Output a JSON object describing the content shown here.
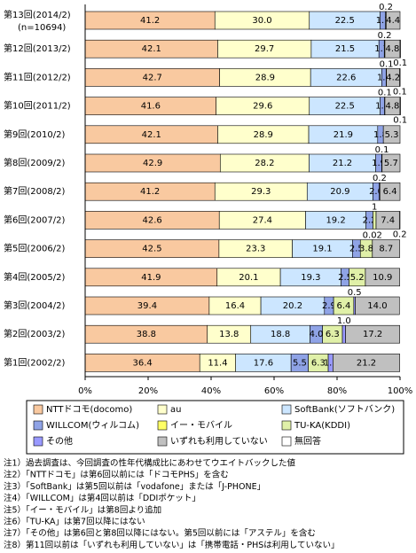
{
  "chart_data": {
    "type": "stacked-bar-horizontal",
    "categories": [
      "第13回(2014/2)",
      "第12回(2013/2)",
      "第11回(2012/2)",
      "第10回(2011/2)",
      "第9回(2010/2)",
      "第8回(2009/2)",
      "第7回(2008/2)",
      "第6回(2007/2)",
      "第5回(2006/2)",
      "第4回(2005/2)",
      "第3回(2004/2)",
      "第2回(2003/2)",
      "第1回(2002/2)"
    ],
    "sample_note": "(n=10694)",
    "series": [
      {
        "name": "NTTドコモ(docomo)",
        "color": "#f9c9a0",
        "values": [
          41.2,
          42.1,
          42.7,
          41.6,
          42.1,
          42.9,
          41.2,
          42.6,
          42.5,
          41.9,
          39.4,
          38.8,
          36.4
        ]
      },
      {
        "name": "au",
        "color": "#ffffcc",
        "values": [
          30.0,
          29.7,
          28.9,
          29.6,
          28.9,
          28.2,
          29.3,
          27.4,
          23.3,
          20.1,
          16.4,
          13.8,
          11.4
        ],
        "value_labels": [
          "30.0",
          "29.7",
          "28.9",
          "29.6",
          "28.9",
          "28.2",
          "29.3",
          "27.4",
          "23.3",
          "20.1",
          "16.4",
          "13.8",
          "11.4"
        ]
      },
      {
        "name": "SoftBank(ソフトバンク)",
        "color": "#cce6ff",
        "values": [
          22.5,
          21.5,
          22.6,
          22.5,
          21.9,
          21.2,
          20.9,
          19.2,
          19.1,
          19.3,
          20.2,
          18.8,
          17.6
        ]
      },
      {
        "name": "WILLCOM(ウィルコム)",
        "color": "#8fa3e6",
        "values": [
          1.7,
          1.7,
          1.4,
          1.4,
          1.8,
          1.9,
          2.0,
          2.2,
          2.5,
          2.5,
          2.9,
          4.0,
          5.5
        ],
        "value_labels": [
          "1.7",
          "1.7",
          "1.4",
          "1.4",
          "1.8",
          "1.9",
          "2.0",
          "2.2",
          "2.5",
          "2.5",
          "2.9",
          "4.0",
          "5.5"
        ]
      },
      {
        "name": "イー・モバイル",
        "color": "#ffff66",
        "values": [
          0.2,
          0.2,
          0.1,
          0.1,
          null,
          0.1,
          null,
          null,
          null,
          null,
          null,
          null,
          null
        ]
      },
      {
        "name": "TU-KA(KDDI)",
        "color": "#e0f0a8",
        "values": [
          null,
          null,
          null,
          null,
          null,
          null,
          null,
          1,
          3.8,
          5.2,
          6.4,
          6.3,
          6.3
        ]
      },
      {
        "name": "その他",
        "color": "#9999ff",
        "values": [
          null,
          null,
          null,
          null,
          null,
          null,
          0.2,
          null,
          0.02,
          null,
          0.5,
          1.0,
          1.5
        ],
        "value_labels": [
          null,
          null,
          null,
          null,
          null,
          null,
          "0.2",
          null,
          "0.02",
          null,
          "0.5",
          "1.0",
          "1.5"
        ]
      },
      {
        "name": "いずれも利用していない",
        "color": "#c0c0c0",
        "values": [
          4.4,
          4.8,
          4.2,
          4.8,
          5.3,
          5.7,
          6.4,
          7.4,
          8.7,
          10.9,
          14.0,
          17.2,
          21.2
        ],
        "value_labels": [
          "4.4",
          "4.8",
          "4.2",
          "4.8",
          "5.3",
          "5.7",
          "6.4",
          "7.4",
          "8.7",
          "10.9",
          "14.0",
          "17.2",
          "21.2"
        ]
      },
      {
        "name": "無回答",
        "color": "#ffffff",
        "values": [
          null,
          0.1,
          0.1,
          0.1,
          null,
          null,
          null,
          0.2,
          null,
          null,
          null,
          null,
          null
        ]
      }
    ],
    "xlim": [
      0,
      100
    ],
    "xticks": [
      {
        "value": 0,
        "label": "0%"
      },
      {
        "value": 20,
        "label": "20%"
      },
      {
        "value": 40,
        "label": "40%"
      },
      {
        "value": 60,
        "label": "60%"
      },
      {
        "value": 80,
        "label": "80%"
      },
      {
        "value": 100,
        "label": "100%"
      }
    ]
  },
  "notes": [
    "注1）過去調査は、今回調査の性年代構成比にあわせてウエイトバックした値",
    "注2）「NTTドコモ」は第6回以前には「ドコモPHS」を含む",
    "注3）「SoftBank」は第5回以前は「vodafone」または「J-PHONE」",
    "注4）「WILLCOM」は第4回以前は「DDIポケット」",
    "注5）「イー・モバイル」は第8回より追加",
    "注6）「TU-KA」は第7回以降にはない",
    "注7）「その他」は第6回と第8回以降にはない。第5回以前には「アステル」を含む",
    "注8）第11回以前は「いずれも利用していない」は「携帯電話・PHSは利用していない」"
  ]
}
